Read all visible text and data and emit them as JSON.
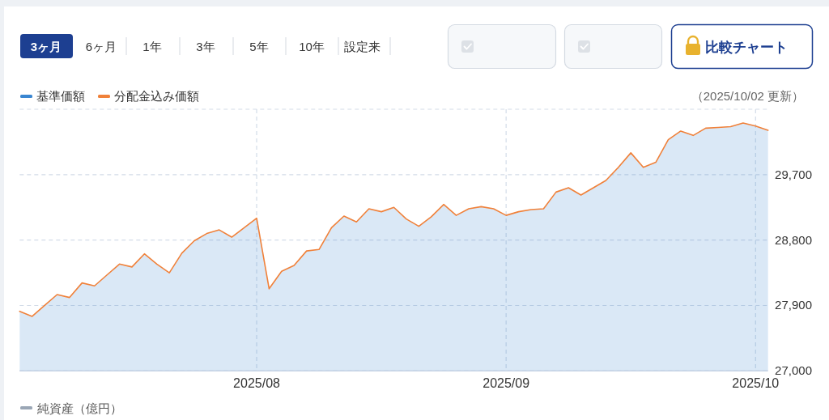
{
  "chart_data": {
    "type": "line",
    "categories": [
      null,
      null,
      null,
      null,
      null,
      null,
      null,
      null,
      null,
      null,
      null,
      null,
      null,
      null,
      null,
      null,
      null,
      null,
      null,
      "2025/08",
      null,
      null,
      null,
      null,
      null,
      null,
      null,
      null,
      null,
      null,
      null,
      null,
      null,
      null,
      null,
      null,
      null,
      null,
      null,
      "2025/09",
      null,
      null,
      null,
      null,
      null,
      null,
      null,
      null,
      null,
      null,
      null,
      null,
      null,
      null,
      null,
      null,
      null,
      null,
      null,
      "2025/10",
      null
    ],
    "series": [
      {
        "name": "基準価額",
        "type": "area",
        "color": "#3a86d1",
        "values": [
          27820,
          27750,
          27900,
          28050,
          28010,
          28210,
          28170,
          28320,
          28470,
          28430,
          28610,
          28470,
          28350,
          28620,
          28790,
          28890,
          28940,
          28840,
          28970,
          29100,
          28130,
          28370,
          28450,
          28650,
          28670,
          28970,
          29130,
          29050,
          29230,
          29190,
          29250,
          29090,
          28990,
          29120,
          29290,
          29140,
          29230,
          29260,
          29230,
          29140,
          29190,
          29220,
          29230,
          29460,
          29520,
          29420,
          29520,
          29620,
          29800,
          30000,
          29800,
          29870,
          30180,
          30300,
          30240,
          30340,
          30350,
          30360,
          30410,
          30370,
          30310
        ]
      },
      {
        "name": "分配金込み価額",
        "color": "#f0813a",
        "values": [
          27820,
          27750,
          27900,
          28050,
          28010,
          28210,
          28170,
          28320,
          28470,
          28430,
          28610,
          28470,
          28350,
          28620,
          28790,
          28890,
          28940,
          28840,
          28970,
          29100,
          28130,
          28370,
          28450,
          28650,
          28670,
          28970,
          29130,
          29050,
          29230,
          29190,
          29250,
          29090,
          28990,
          29120,
          29290,
          29140,
          29230,
          29260,
          29230,
          29140,
          29190,
          29220,
          29230,
          29460,
          29520,
          29420,
          29520,
          29620,
          29800,
          30000,
          29800,
          29870,
          30180,
          30300,
          30240,
          30340,
          30350,
          30360,
          30410,
          30370,
          30310
        ]
      }
    ],
    "ylim": [
      27000,
      30600
    ],
    "yticks": [
      {
        "value": 27000,
        "label": "27,000"
      },
      {
        "value": 27900,
        "label": "27,900"
      },
      {
        "value": 28800,
        "label": "28,800"
      },
      {
        "value": 29700,
        "label": "29,700"
      },
      {
        "value": 30600,
        "label": null
      }
    ],
    "grid": true,
    "legend": "top left",
    "annotations": [
      "3ヶ月",
      "6ヶ月",
      "1年",
      "3年",
      "5年",
      "10年",
      "設定来",
      "比較チャート",
      "（2025/10/02 更新）",
      "純資産（億円）"
    ]
  }
}
